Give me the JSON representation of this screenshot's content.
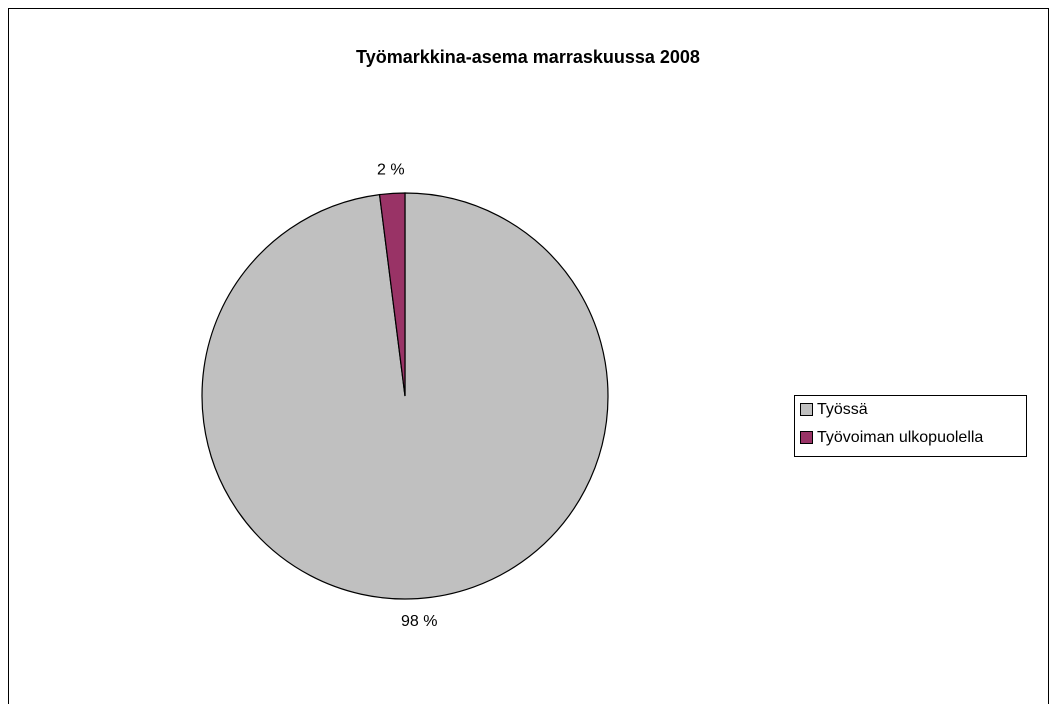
{
  "chart_data": {
    "type": "pie",
    "title": "Työmarkkina-asema marraskuussa 2008",
    "categories": [
      "Työssä",
      "Työvoiman ulkopuolella"
    ],
    "values": [
      98,
      2
    ],
    "value_labels": [
      "98 %",
      "2 %"
    ],
    "colors": [
      "#c0c0c0",
      "#993366"
    ],
    "legend": "right"
  }
}
